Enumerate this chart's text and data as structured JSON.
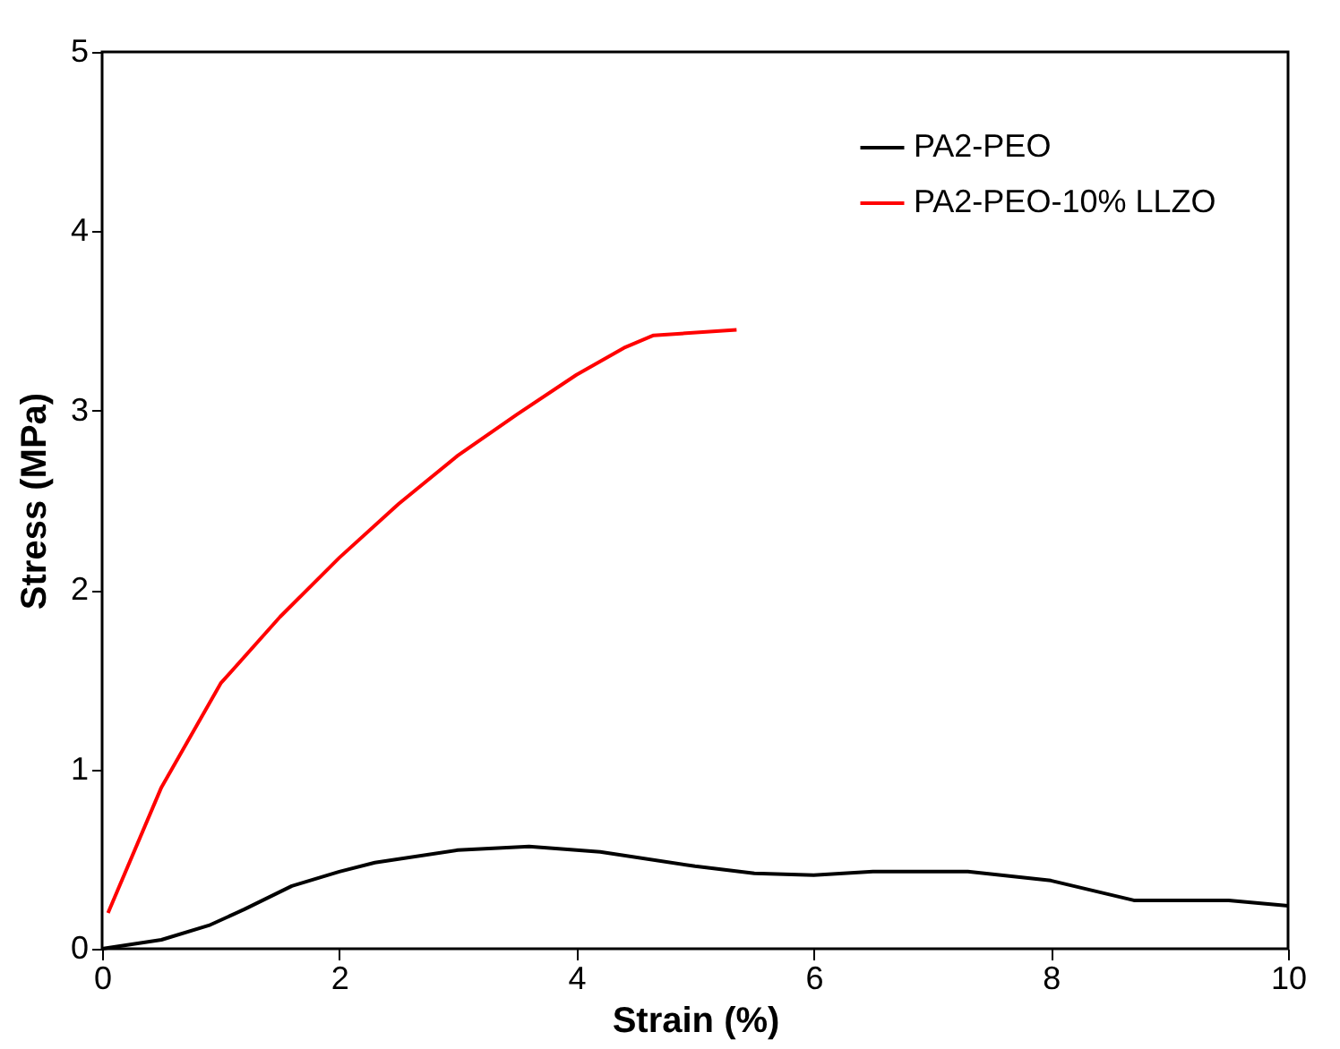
{
  "chart_data": {
    "type": "line",
    "xlabel": "Strain (%)",
    "ylabel": "Stress (MPa)",
    "xlim": [
      0,
      10
    ],
    "ylim": [
      0,
      5
    ],
    "xticks": [
      0,
      2,
      4,
      6,
      8,
      10
    ],
    "yticks": [
      0,
      1,
      2,
      3,
      4,
      5
    ],
    "grid": false,
    "legend": "top right",
    "marker": "none",
    "line_style": "solid",
    "series": [
      {
        "name": "PA2-PEO",
        "color": "#000000",
        "x": [
          0,
          0.5,
          0.9,
          1.2,
          1.6,
          2,
          2.3,
          3,
          3.6,
          4.2,
          5,
          5.5,
          6,
          6.5,
          7.3,
          8,
          8.7,
          9.5,
          10
        ],
        "values": [
          0,
          0.05,
          0.13,
          0.22,
          0.35,
          0.43,
          0.48,
          0.55,
          0.57,
          0.54,
          0.46,
          0.42,
          0.41,
          0.43,
          0.43,
          0.38,
          0.27,
          0.27,
          0.24
        ]
      },
      {
        "name": "PA2-PEO-10% LLZO",
        "color": "#ff0000",
        "x": [
          0.05,
          0.5,
          1,
          1.5,
          2,
          2.5,
          3,
          3.5,
          4,
          4.4,
          4.65,
          5.35
        ],
        "values": [
          0.2,
          0.9,
          1.48,
          1.85,
          2.18,
          2.48,
          2.75,
          2.98,
          3.2,
          3.35,
          3.42,
          3.45
        ]
      }
    ]
  }
}
